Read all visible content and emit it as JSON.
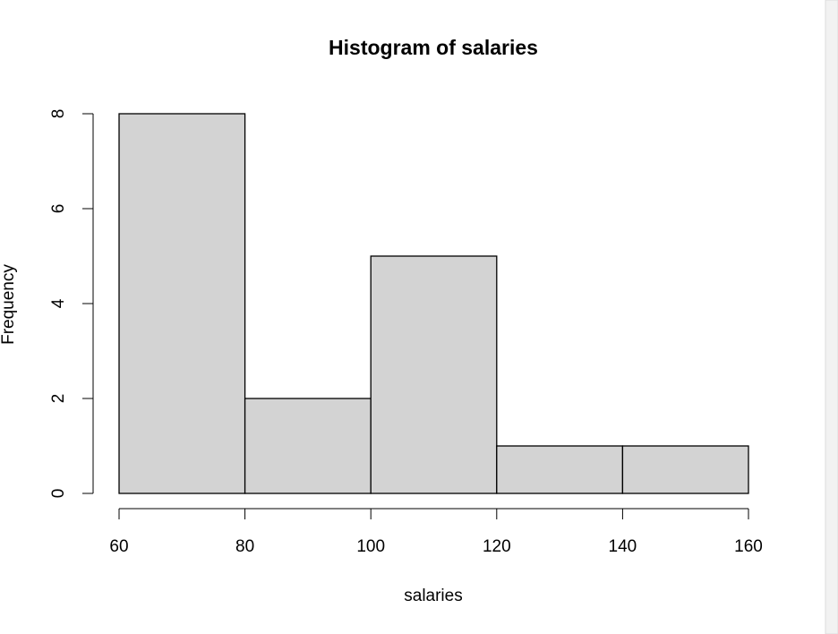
{
  "chart_data": {
    "type": "histogram",
    "title": "Histogram of salaries",
    "x_label": "salaries",
    "y_label": "Frequency",
    "bins": [
      60,
      80,
      100,
      120,
      140,
      160
    ],
    "counts": [
      8,
      2,
      5,
      1,
      1
    ],
    "color": "#d3d3d3",
    "xlim": [
      60,
      160
    ],
    "ylim": [
      0,
      8
    ],
    "xticks": [
      60,
      80,
      100,
      120,
      140,
      160
    ],
    "yticks": [
      0,
      2,
      4,
      6,
      8
    ]
  }
}
